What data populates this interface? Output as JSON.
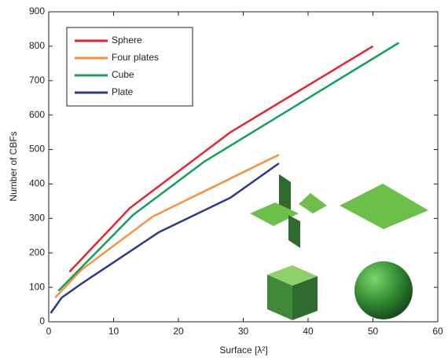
{
  "chart_data": {
    "type": "line",
    "x_label": "Surface [λ²]",
    "y_label": "Number of CBFs",
    "xlim": [
      0,
      60
    ],
    "xticks": [
      0,
      10,
      20,
      30,
      40,
      50,
      60
    ],
    "ylim": [
      0,
      900
    ],
    "yticks": [
      0,
      100,
      200,
      300,
      400,
      500,
      600,
      700,
      800,
      900
    ],
    "legend": "upper left",
    "series": [
      {
        "name": "Sphere",
        "color": "#e4252b",
        "x": [
          3.2,
          12.5,
          28,
          50
        ],
        "values": [
          145,
          330,
          550,
          800
        ]
      },
      {
        "name": "Four plates",
        "color": "#f5923e",
        "x": [
          1,
          5,
          16,
          35.5
        ],
        "values": [
          70,
          150,
          305,
          485
        ]
      },
      {
        "name": "Cube",
        "color": "#15a05a",
        "x": [
          1.5,
          13,
          24,
          54
        ],
        "values": [
          90,
          310,
          465,
          810
        ]
      },
      {
        "name": "Plate",
        "color": "#2b3990",
        "x": [
          0.3,
          2,
          5,
          9,
          17,
          28,
          35.5
        ],
        "values": [
          25,
          70,
          110,
          160,
          260,
          360,
          460
        ]
      }
    ]
  }
}
